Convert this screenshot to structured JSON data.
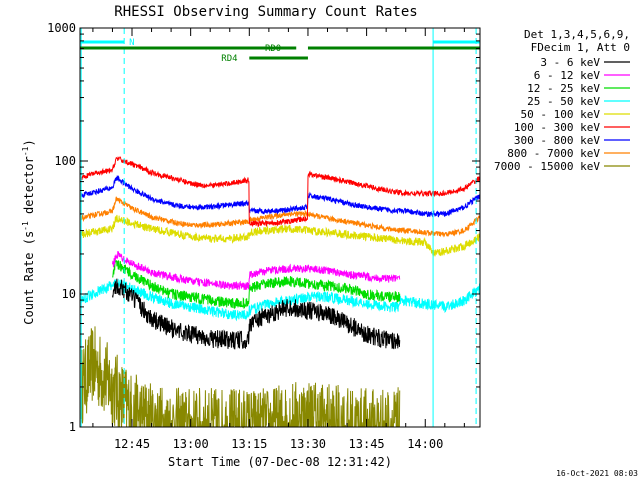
{
  "chart_data": {
    "type": "line",
    "title": "RHESSI Observing Summary Count Rates",
    "xlabel": "Start Time (07-Dec-08 12:31:42)",
    "ylabel_main": "Count Rate (s",
    "ylabel_sup1": "-1",
    "ylabel_mid": " detector",
    "ylabel_sup2": "-1",
    "ylabel_end": ")",
    "x_tick_labels": [
      "12:45",
      "13:00",
      "13:15",
      "13:30",
      "13:45",
      "14:00"
    ],
    "x_ticks_min": [
      45,
      60,
      75,
      90,
      105,
      120
    ],
    "xlim_min": [
      31.7,
      134.0
    ],
    "y_scale": "log",
    "y_tick_labels": [
      "1",
      "10",
      "100",
      "1000"
    ],
    "y_ticks": [
      1,
      10,
      100,
      1000
    ],
    "ylim": [
      1,
      1000
    ],
    "header_lines": [
      "Det 1,3,4,5,6,9,",
      "FDecim 1, Att 0"
    ],
    "legend": [
      {
        "label": "3 - 6 keV",
        "color": "#000000"
      },
      {
        "label": "6 - 12 keV",
        "color": "#ff00ff"
      },
      {
        "label": "12 - 25 keV",
        "color": "#00dd00"
      },
      {
        "label": "25 - 50 keV",
        "color": "#00ffff"
      },
      {
        "label": "50 - 100 keV",
        "color": "#dddd00"
      },
      {
        "label": "100 - 300 keV",
        "color": "#ff0000"
      },
      {
        "label": "300 - 800 keV",
        "color": "#0000ff"
      },
      {
        "label": "800 - 7000 keV",
        "color": "#ff8000"
      },
      {
        "label": "7000 - 15000 keV",
        "color": "#888800"
      }
    ],
    "series": [
      {
        "name": "3 - 6 keV",
        "color": "#000000",
        "noise": 0.07,
        "x": [
          40,
          41,
          45,
          50,
          55,
          60,
          65,
          70,
          74.9,
          75,
          80,
          85,
          90,
          95,
          100,
          105,
          110,
          113.5
        ],
        "y": [
          8.5,
          12,
          9.5,
          6.5,
          5.5,
          5,
          4.6,
          4.5,
          4.5,
          6,
          7,
          8,
          7.5,
          7,
          6,
          5,
          4.5,
          4.5
        ]
      },
      {
        "name": "6 - 12 keV",
        "color": "#ff00ff",
        "noise": 0.03,
        "x": [
          40,
          41,
          45,
          50,
          55,
          60,
          65,
          70,
          74.9,
          75,
          80,
          85,
          90,
          95,
          100,
          105,
          110,
          113.5
        ],
        "y": [
          16,
          20,
          17,
          14.5,
          13.5,
          12.5,
          12,
          11.5,
          11.5,
          14,
          15,
          15.5,
          15.5,
          15,
          14,
          13.5,
          13,
          13
        ]
      },
      {
        "name": "12 - 25 keV",
        "color": "#00dd00",
        "noise": 0.04,
        "x": [
          40,
          41,
          45,
          50,
          55,
          60,
          65,
          70,
          74.9,
          75,
          80,
          85,
          90,
          95,
          100,
          105,
          110,
          113.5
        ],
        "y": [
          14,
          17,
          14,
          11.5,
          10,
          9.5,
          9,
          8.5,
          8.5,
          11,
          12,
          12.5,
          12,
          11.5,
          11,
          10,
          9.5,
          9.5
        ]
      },
      {
        "name": "25 - 50 keV",
        "color": "#00ffff",
        "noise": 0.04,
        "x": [
          32,
          35,
          38,
          41,
          45,
          50,
          55,
          60,
          65,
          70,
          74.9,
          75,
          80,
          85,
          90,
          95,
          100,
          105,
          110,
          113.5,
          113.6,
          125,
          130,
          134
        ],
        "y": [
          9,
          10,
          11,
          12,
          11,
          9.5,
          8.5,
          8,
          7.5,
          7,
          7,
          7.5,
          8.5,
          9,
          9.5,
          9.5,
          9,
          8.5,
          8,
          8,
          9,
          8,
          9,
          11
        ]
      },
      {
        "name": "50 - 100 keV",
        "color": "#dddd00",
        "noise": 0.03,
        "x": [
          32,
          35,
          40,
          41,
          45,
          50,
          55,
          60,
          65,
          70,
          74.9,
          75,
          80,
          85,
          90,
          95,
          100,
          105,
          110,
          115,
          120,
          122,
          125,
          130,
          134
        ],
        "y": [
          28,
          29,
          31,
          37,
          34,
          31,
          29,
          27,
          26,
          26,
          27,
          29,
          30,
          31,
          30,
          29,
          28,
          27,
          26,
          25,
          24.5,
          20,
          21,
          23,
          27
        ]
      },
      {
        "name": "100 - 300 keV",
        "color": "#ff0000",
        "noise": 0.02,
        "x": [
          32,
          35,
          40,
          41,
          45,
          50,
          55,
          60,
          65,
          70,
          74.9,
          75,
          80,
          85,
          89.9,
          90,
          95,
          100,
          105,
          110,
          115,
          120,
          125,
          130,
          134
        ],
        "y": [
          75,
          80,
          85,
          105,
          95,
          82,
          75,
          68,
          65,
          68,
          72,
          34,
          34,
          35,
          37,
          80,
          75,
          70,
          65,
          60,
          57,
          57,
          57,
          62,
          75
        ]
      },
      {
        "name": "300 - 800 keV",
        "color": "#0000ff",
        "noise": 0.02,
        "x": [
          32,
          35,
          40,
          41,
          45,
          50,
          55,
          60,
          65,
          70,
          74.9,
          75,
          80,
          85,
          89.9,
          90,
          95,
          100,
          105,
          110,
          115,
          120,
          125,
          130,
          134
        ],
        "y": [
          55,
          58,
          63,
          75,
          62,
          52,
          47,
          45,
          45,
          47,
          48,
          42,
          42,
          43,
          45,
          55,
          52,
          48,
          45,
          43,
          42,
          40,
          40,
          45,
          55
        ]
      },
      {
        "name": "800 - 7000 keV",
        "color": "#ff8000",
        "noise": 0.02,
        "x": [
          32,
          35,
          40,
          41,
          45,
          50,
          55,
          60,
          65,
          70,
          74.9,
          75,
          80,
          85,
          90,
          95,
          100,
          105,
          110,
          115,
          120,
          125,
          130,
          134
        ],
        "y": [
          37,
          39,
          42,
          52,
          44,
          38,
          35,
          33,
          33,
          34,
          35,
          36,
          38,
          40,
          40,
          37,
          35,
          33,
          31,
          30,
          29,
          28,
          30,
          38
        ]
      },
      {
        "name": "7000 - 15000 keV",
        "color": "#888800",
        "noise": 0.3,
        "x": [
          32,
          35,
          40,
          45,
          50,
          55,
          60,
          65,
          70,
          75,
          80,
          85,
          90,
          95,
          100,
          105,
          110,
          113.5
        ],
        "y": [
          2,
          3,
          2,
          1.3,
          1.1,
          1,
          1,
          1,
          1,
          1,
          1,
          1.1,
          1.2,
          1.1,
          1,
          1,
          1,
          1
        ]
      }
    ],
    "att_bars": [
      {
        "label": "N",
        "color": "#00ffff",
        "x_start": 31.7,
        "x_end": 43,
        "row": 0
      },
      {
        "label": "",
        "color": "#00ffff",
        "x_start": 122,
        "x_end": 134,
        "row": 0
      },
      {
        "label": "RD0",
        "color": "#008000",
        "x_start": 31.7,
        "x_end": 134,
        "gap": [
          87,
          90
        ],
        "row": 1
      },
      {
        "label": "RD4",
        "color": "#008000",
        "x_start": 75,
        "x_end": 90,
        "row": 2
      }
    ],
    "vlines": [
      {
        "x": 32.0,
        "color": "#00ffff",
        "style": "solid"
      },
      {
        "x": 43.0,
        "color": "#00ffff",
        "style": "dashed"
      },
      {
        "x": 122.0,
        "color": "#00ffff",
        "style": "solid"
      },
      {
        "x": 133.0,
        "color": "#00ffff",
        "style": "dashed"
      }
    ],
    "footer_timestamp": "16-Oct-2021 08:03"
  }
}
